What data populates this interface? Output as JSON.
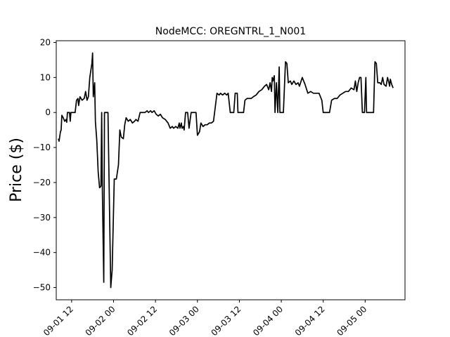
{
  "chart_data": {
    "type": "line",
    "title": "NodeMCC: OREGNTRL_1_N001",
    "ylabel": "Price ($)",
    "xlabel": "",
    "ylim": [
      -53.5,
      20.5
    ],
    "xlim": [
      "2024-09-01 07:36",
      "2024-09-05 11:24"
    ],
    "grid": false,
    "yticks": [
      20,
      10,
      0,
      -10,
      -20,
      -30,
      -40,
      -50
    ],
    "ytick_labels": [
      "20",
      "10",
      "0",
      "−10",
      "−20",
      "−30",
      "−40",
      "−50"
    ],
    "xticks": [
      "2024-09-01 12:00",
      "2024-09-02 00:00",
      "2024-09-02 12:00",
      "2024-09-03 00:00",
      "2024-09-03 12:00",
      "2024-09-04 00:00",
      "2024-09-04 12:00",
      "2024-09-05 00:00"
    ],
    "xtick_labels": [
      "09-01 12",
      "09-02 00",
      "09-02 12",
      "09-03 00",
      "09-03 12",
      "09-04 00",
      "09-04 12",
      "09-05 00"
    ],
    "series": [
      {
        "color": "#000000",
        "points": [
          [
            "2024-09-01 08:12",
            -7.5
          ],
          [
            "2024-09-01 08:24",
            -8.2
          ],
          [
            "2024-09-01 08:48",
            -5.5
          ],
          [
            "2024-09-01 09:00",
            -5.0
          ],
          [
            "2024-09-01 09:12",
            -0.8
          ],
          [
            "2024-09-01 09:36",
            -1.5
          ],
          [
            "2024-09-01 10:00",
            -2.5
          ],
          [
            "2024-09-01 10:24",
            -2.0
          ],
          [
            "2024-09-01 10:36",
            -2.8
          ],
          [
            "2024-09-01 10:48",
            0.0
          ],
          [
            "2024-09-01 11:24",
            0.0
          ],
          [
            "2024-09-01 11:36",
            -2.5
          ],
          [
            "2024-09-01 11:48",
            0.0
          ],
          [
            "2024-09-01 13:00",
            0.0
          ],
          [
            "2024-09-01 13:24",
            3.5
          ],
          [
            "2024-09-01 13:48",
            4.0
          ],
          [
            "2024-09-01 14:00",
            2.0
          ],
          [
            "2024-09-01 14:24",
            4.5
          ],
          [
            "2024-09-01 15:00",
            3.5
          ],
          [
            "2024-09-01 15:36",
            4.0
          ],
          [
            "2024-09-01 16:00",
            6.0
          ],
          [
            "2024-09-01 16:24",
            3.5
          ],
          [
            "2024-09-01 16:48",
            4.5
          ],
          [
            "2024-09-01 17:12",
            10.0
          ],
          [
            "2024-09-01 17:48",
            14.0
          ],
          [
            "2024-09-01 18:00",
            17.0
          ],
          [
            "2024-09-01 18:12",
            4.5
          ],
          [
            "2024-09-01 18:36",
            8.5
          ],
          [
            "2024-09-01 18:48",
            -2.5
          ],
          [
            "2024-09-01 19:12",
            -8.0
          ],
          [
            "2024-09-01 19:36",
            -17.0
          ],
          [
            "2024-09-01 20:00",
            -21.5
          ],
          [
            "2024-09-01 20:24",
            -21.0
          ],
          [
            "2024-09-01 20:36",
            0.0
          ],
          [
            "2024-09-01 20:48",
            -22.5
          ],
          [
            "2024-09-01 21:12",
            -48.5
          ],
          [
            "2024-09-01 21:24",
            0.0
          ],
          [
            "2024-09-01 22:24",
            0.0
          ],
          [
            "2024-09-01 23:12",
            -50.0
          ],
          [
            "2024-09-01 23:36",
            -45.0
          ],
          [
            "2024-09-02 00:12",
            -19.0
          ],
          [
            "2024-09-02 00:48",
            -19.0
          ],
          [
            "2024-09-02 01:24",
            -15.0
          ],
          [
            "2024-09-02 01:48",
            -5.0
          ],
          [
            "2024-09-02 02:12",
            -7.0
          ],
          [
            "2024-09-02 02:48",
            -7.5
          ],
          [
            "2024-09-02 03:12",
            -3.5
          ],
          [
            "2024-09-02 03:36",
            -1.5
          ],
          [
            "2024-09-02 04:12",
            -2.5
          ],
          [
            "2024-09-02 04:48",
            -2.0
          ],
          [
            "2024-09-02 05:24",
            -3.0
          ],
          [
            "2024-09-02 06:00",
            -2.5
          ],
          [
            "2024-09-02 06:24",
            -2.0
          ],
          [
            "2024-09-02 07:00",
            -2.5
          ],
          [
            "2024-09-02 07:36",
            0.0
          ],
          [
            "2024-09-02 09:00",
            0.0
          ],
          [
            "2024-09-02 09:36",
            0.5
          ],
          [
            "2024-09-02 10:00",
            0.0
          ],
          [
            "2024-09-02 10:36",
            0.5
          ],
          [
            "2024-09-02 11:00",
            0.0
          ],
          [
            "2024-09-02 11:36",
            0.5
          ],
          [
            "2024-09-02 12:12",
            -0.5
          ],
          [
            "2024-09-02 12:48",
            -1.0
          ],
          [
            "2024-09-02 13:24",
            -0.5
          ],
          [
            "2024-09-02 14:00",
            -1.5
          ],
          [
            "2024-09-02 14:48",
            -2.0
          ],
          [
            "2024-09-02 15:36",
            -3.0
          ],
          [
            "2024-09-02 16:12",
            -4.5
          ],
          [
            "2024-09-02 16:48",
            -4.0
          ],
          [
            "2024-09-02 17:12",
            -4.5
          ],
          [
            "2024-09-02 17:48",
            -4.0
          ],
          [
            "2024-09-02 18:24",
            -4.5
          ],
          [
            "2024-09-02 18:48",
            -3.0
          ],
          [
            "2024-09-02 19:00",
            -4.5
          ],
          [
            "2024-09-02 19:24",
            -3.0
          ],
          [
            "2024-09-02 19:36",
            -4.5
          ],
          [
            "2024-09-02 20:00",
            -4.0
          ],
          [
            "2024-09-02 20:12",
            -5.0
          ],
          [
            "2024-09-02 20:36",
            0.0
          ],
          [
            "2024-09-02 21:12",
            0.0
          ],
          [
            "2024-09-02 21:36",
            -4.5
          ],
          [
            "2024-09-02 22:12",
            0.0
          ],
          [
            "2024-09-02 23:36",
            0.0
          ],
          [
            "2024-09-03 00:00",
            -6.5
          ],
          [
            "2024-09-03 00:36",
            -5.5
          ],
          [
            "2024-09-03 01:00",
            -3.0
          ],
          [
            "2024-09-03 01:36",
            -4.0
          ],
          [
            "2024-09-03 02:12",
            -3.5
          ],
          [
            "2024-09-03 02:48",
            -3.5
          ],
          [
            "2024-09-03 03:24",
            -3.0
          ],
          [
            "2024-09-03 04:00",
            -3.0
          ],
          [
            "2024-09-03 04:36",
            -2.5
          ],
          [
            "2024-09-03 05:36",
            5.5
          ],
          [
            "2024-09-03 06:12",
            5.0
          ],
          [
            "2024-09-03 06:36",
            5.5
          ],
          [
            "2024-09-03 07:12",
            5.0
          ],
          [
            "2024-09-03 07:48",
            5.5
          ],
          [
            "2024-09-03 08:24",
            5.0
          ],
          [
            "2024-09-03 08:48",
            5.5
          ],
          [
            "2024-09-03 09:24",
            0.0
          ],
          [
            "2024-09-03 10:24",
            0.0
          ],
          [
            "2024-09-03 10:48",
            5.5
          ],
          [
            "2024-09-03 11:24",
            5.5
          ],
          [
            "2024-09-03 11:36",
            0.0
          ],
          [
            "2024-09-03 13:12",
            0.0
          ],
          [
            "2024-09-03 13:36",
            3.5
          ],
          [
            "2024-09-03 14:12",
            4.0
          ],
          [
            "2024-09-03 14:48",
            4.0
          ],
          [
            "2024-09-03 15:24",
            4.0
          ],
          [
            "2024-09-03 16:00",
            4.5
          ],
          [
            "2024-09-03 16:48",
            5.0
          ],
          [
            "2024-09-03 17:36",
            6.0
          ],
          [
            "2024-09-03 18:24",
            6.5
          ],
          [
            "2024-09-03 19:12",
            7.5
          ],
          [
            "2024-09-03 19:48",
            8.0
          ],
          [
            "2024-09-03 20:24",
            6.5
          ],
          [
            "2024-09-03 20:48",
            8.5
          ],
          [
            "2024-09-03 21:12",
            6.0
          ],
          [
            "2024-09-03 21:24",
            10.0
          ],
          [
            "2024-09-03 21:36",
            9.0
          ],
          [
            "2024-09-03 22:00",
            10.5
          ],
          [
            "2024-09-03 22:12",
            0.0
          ],
          [
            "2024-09-03 22:36",
            8.5
          ],
          [
            "2024-09-03 23:00",
            0.0
          ],
          [
            "2024-09-03 23:24",
            13.0
          ],
          [
            "2024-09-03 23:36",
            0.0
          ],
          [
            "2024-09-04 00:36",
            0.0
          ],
          [
            "2024-09-04 01:12",
            14.5
          ],
          [
            "2024-09-04 01:36",
            14.0
          ],
          [
            "2024-09-04 02:00",
            8.5
          ],
          [
            "2024-09-04 02:36",
            9.0
          ],
          [
            "2024-09-04 03:00",
            8.0
          ],
          [
            "2024-09-04 03:36",
            9.0
          ],
          [
            "2024-09-04 04:12",
            8.0
          ],
          [
            "2024-09-04 04:48",
            8.5
          ],
          [
            "2024-09-04 05:12",
            7.5
          ],
          [
            "2024-09-04 06:00",
            10.0
          ],
          [
            "2024-09-04 06:48",
            8.0
          ],
          [
            "2024-09-04 07:36",
            5.5
          ],
          [
            "2024-09-04 08:24",
            6.0
          ],
          [
            "2024-09-04 09:12",
            5.5
          ],
          [
            "2024-09-04 10:00",
            5.5
          ],
          [
            "2024-09-04 10:48",
            5.5
          ],
          [
            "2024-09-04 11:36",
            3.5
          ],
          [
            "2024-09-04 12:00",
            0.0
          ],
          [
            "2024-09-04 13:48",
            0.0
          ],
          [
            "2024-09-04 14:24",
            3.5
          ],
          [
            "2024-09-04 15:12",
            4.0
          ],
          [
            "2024-09-04 16:00",
            4.0
          ],
          [
            "2024-09-04 16:48",
            5.0
          ],
          [
            "2024-09-04 17:36",
            5.5
          ],
          [
            "2024-09-04 18:24",
            6.0
          ],
          [
            "2024-09-04 19:12",
            6.0
          ],
          [
            "2024-09-04 20:00",
            7.0
          ],
          [
            "2024-09-04 20:48",
            6.5
          ],
          [
            "2024-09-04 21:12",
            9.0
          ],
          [
            "2024-09-04 21:36",
            6.0
          ],
          [
            "2024-09-04 22:00",
            8.5
          ],
          [
            "2024-09-04 22:24",
            10.0
          ],
          [
            "2024-09-04 22:48",
            10.0
          ],
          [
            "2024-09-04 23:12",
            0.0
          ],
          [
            "2024-09-04 23:48",
            0.0
          ],
          [
            "2024-09-05 00:12",
            10.0
          ],
          [
            "2024-09-05 00:24",
            0.0
          ],
          [
            "2024-09-05 00:48",
            0.0
          ],
          [
            "2024-09-05 01:36",
            0.0
          ],
          [
            "2024-09-05 02:24",
            0.0
          ],
          [
            "2024-09-05 02:48",
            14.5
          ],
          [
            "2024-09-05 03:12",
            14.0
          ],
          [
            "2024-09-05 03:36",
            8.5
          ],
          [
            "2024-09-05 04:12",
            8.5
          ],
          [
            "2024-09-05 04:36",
            8.0
          ],
          [
            "2024-09-05 05:00",
            10.0
          ],
          [
            "2024-09-05 05:24",
            8.0
          ],
          [
            "2024-09-05 06:00",
            7.5
          ],
          [
            "2024-09-05 06:24",
            10.0
          ],
          [
            "2024-09-05 06:48",
            8.5
          ],
          [
            "2024-09-05 07:00",
            7.5
          ],
          [
            "2024-09-05 07:12",
            9.5
          ],
          [
            "2024-09-05 07:36",
            8.0
          ],
          [
            "2024-09-05 08:00",
            7.0
          ]
        ]
      }
    ]
  }
}
